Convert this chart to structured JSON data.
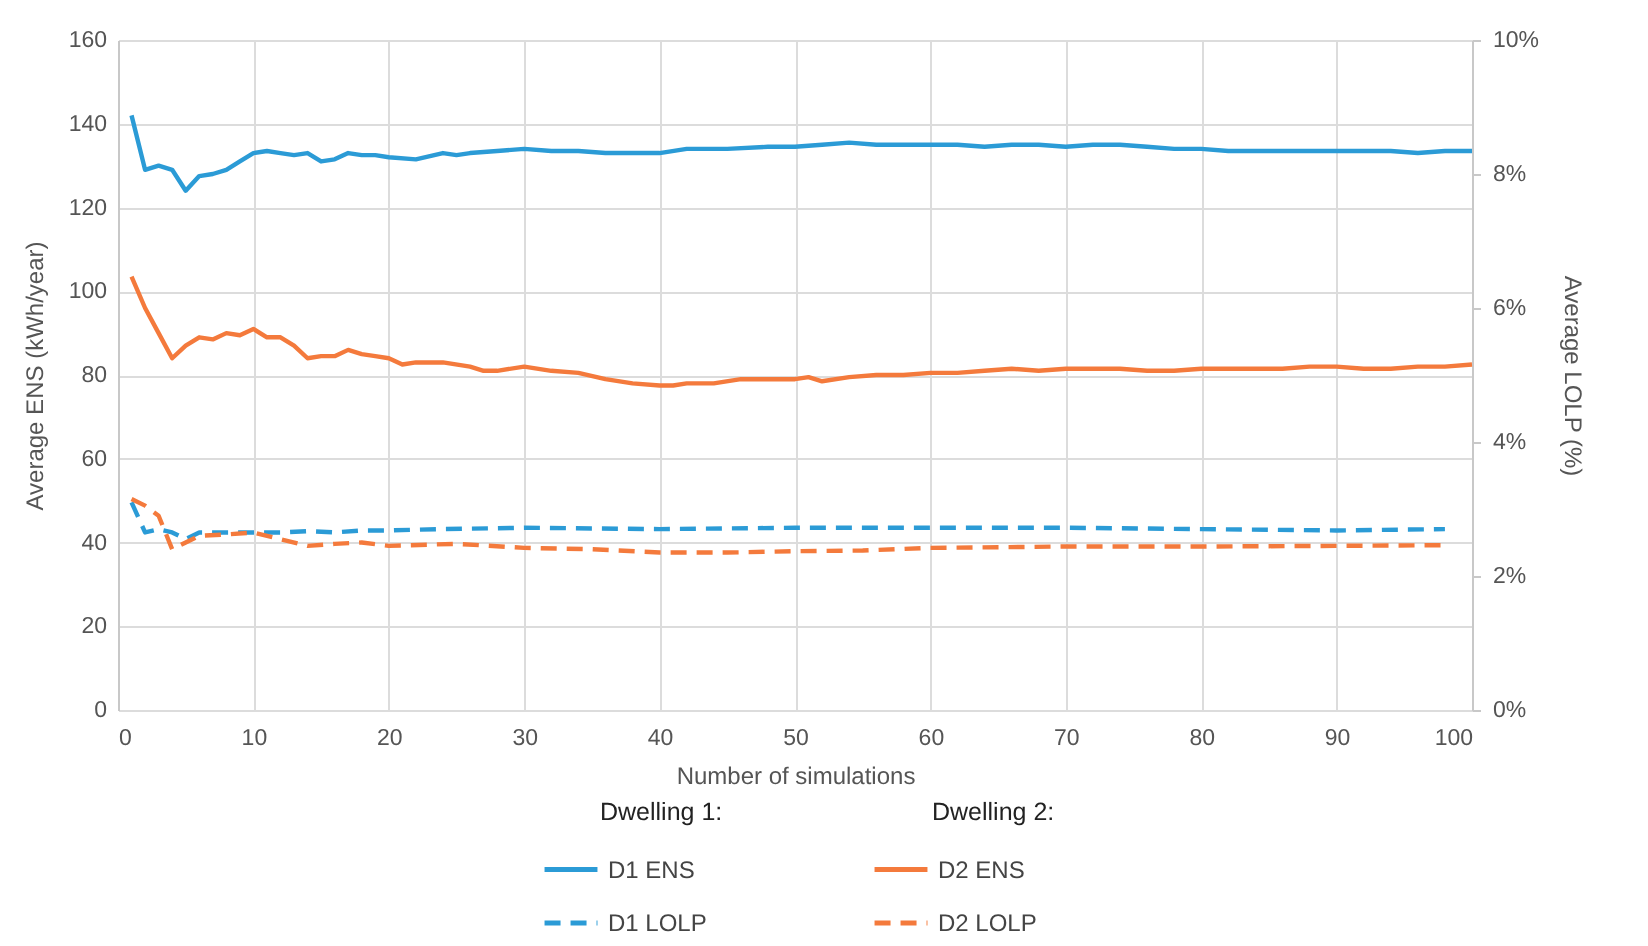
{
  "chart_data": {
    "type": "line",
    "xlabel": "Number of simulations",
    "ylabel": "Average ENS (kWh/year)",
    "y2label": "Average LOLP (%)",
    "xlim": [
      0,
      100
    ],
    "xticks": [
      0,
      10,
      20,
      30,
      40,
      50,
      60,
      70,
      80,
      90,
      100
    ],
    "ylim": [
      0,
      160
    ],
    "yticks": [
      0,
      20,
      40,
      60,
      80,
      100,
      120,
      140,
      160
    ],
    "y2lim": [
      0,
      10
    ],
    "y2ticks": [
      {
        "value": 0,
        "label": "0%"
      },
      {
        "value": 2,
        "label": "2%"
      },
      {
        "value": 4,
        "label": "4%"
      },
      {
        "value": 6,
        "label": "6%"
      },
      {
        "value": 8,
        "label": "8%"
      },
      {
        "value": 10,
        "label": "10%"
      }
    ],
    "grid": true,
    "legend": "bottom",
    "annotations": [
      "Dwelling 1:",
      "Dwelling 2:"
    ],
    "series": [
      {
        "name": "D1 ENS",
        "color": "#2b9bd6",
        "line_style": "solid",
        "x": [
          1,
          2,
          3,
          4,
          5,
          6,
          7,
          8,
          9,
          10,
          11,
          12,
          13,
          14,
          15,
          16,
          17,
          18,
          19,
          20,
          22,
          24,
          25,
          26,
          28,
          30,
          32,
          34,
          36,
          38,
          40,
          42,
          45,
          48,
          50,
          52,
          54,
          56,
          58,
          60,
          62,
          64,
          66,
          68,
          70,
          72,
          74,
          76,
          78,
          80,
          82,
          84,
          86,
          88,
          90,
          92,
          94,
          96,
          98,
          100
        ],
        "values": [
          142,
          129,
          130,
          129,
          124,
          127.5,
          128,
          129,
          131,
          133,
          133.5,
          133,
          132.5,
          133,
          131,
          131.5,
          133,
          132.5,
          132.5,
          132,
          131.5,
          133,
          132.5,
          133,
          133.5,
          134,
          133.5,
          133.5,
          133,
          133,
          133,
          134,
          134,
          134.5,
          134.5,
          135,
          135.5,
          135,
          135,
          135,
          135,
          134.5,
          135,
          135,
          134.5,
          135,
          135,
          134.5,
          134,
          134,
          133.5,
          133.5,
          133.5,
          133.5,
          133.5,
          133.5,
          133.5,
          133,
          133.5,
          133.5
        ]
      },
      {
        "name": "D1 LOLP",
        "color": "#2b9bd6",
        "line_style": "dashed",
        "axis": "y2",
        "x": [
          1,
          2,
          3,
          4,
          5,
          6,
          8,
          10,
          12,
          14,
          16,
          18,
          20,
          24,
          30,
          40,
          50,
          60,
          70,
          80,
          90,
          98
        ],
        "values": [
          3.1,
          2.65,
          2.7,
          2.65,
          2.55,
          2.65,
          2.65,
          2.65,
          2.65,
          2.67,
          2.65,
          2.68,
          2.68,
          2.7,
          2.72,
          2.7,
          2.72,
          2.72,
          2.72,
          2.7,
          2.68,
          2.7
        ]
      },
      {
        "name": "D2 ENS",
        "color": "#f47a3c",
        "line_style": "solid",
        "x": [
          1,
          2,
          3,
          4,
          5,
          6,
          7,
          8,
          9,
          10,
          11,
          12,
          13,
          14,
          15,
          16,
          17,
          18,
          19,
          20,
          21,
          22,
          24,
          26,
          27,
          28,
          30,
          32,
          34,
          36,
          38,
          40,
          41,
          42,
          44,
          46,
          48,
          50,
          51,
          52,
          54,
          56,
          58,
          60,
          62,
          64,
          66,
          68,
          70,
          72,
          74,
          76,
          78,
          80,
          82,
          84,
          86,
          88,
          90,
          92,
          94,
          96,
          98,
          100
        ],
        "values": [
          103.5,
          96,
          90,
          84,
          87,
          89,
          88.5,
          90,
          89.5,
          91,
          89,
          89,
          87,
          84,
          84.5,
          84.5,
          86,
          85,
          84.5,
          84,
          82.5,
          83,
          83,
          82,
          81,
          81,
          82,
          81,
          80.5,
          79,
          78,
          77.5,
          77.5,
          78,
          78,
          79,
          79,
          79,
          79.5,
          78.5,
          79.5,
          80,
          80,
          80.5,
          80.5,
          81,
          81.5,
          81,
          81.5,
          81.5,
          81.5,
          81,
          81,
          81.5,
          81.5,
          81.5,
          81.5,
          82,
          82,
          81.5,
          81.5,
          82,
          82,
          82.5
        ]
      },
      {
        "name": "D2 LOLP",
        "color": "#f47a3c",
        "line_style": "dashed",
        "axis": "y2",
        "x": [
          1,
          2,
          3,
          4,
          5,
          6,
          8,
          10,
          12,
          14,
          16,
          18,
          20,
          25,
          30,
          35,
          40,
          45,
          50,
          55,
          60,
          70,
          80,
          90,
          98
        ],
        "values": [
          3.15,
          3.05,
          2.9,
          2.4,
          2.5,
          2.6,
          2.62,
          2.65,
          2.55,
          2.45,
          2.48,
          2.5,
          2.45,
          2.48,
          2.42,
          2.4,
          2.35,
          2.35,
          2.37,
          2.38,
          2.42,
          2.44,
          2.44,
          2.45,
          2.46
        ]
      }
    ]
  }
}
